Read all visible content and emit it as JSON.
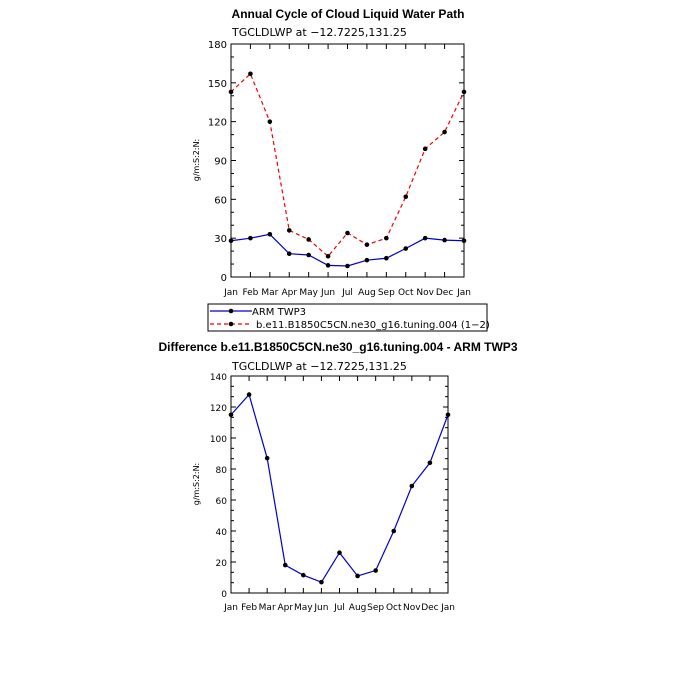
{
  "chart_data": [
    {
      "type": "line",
      "title": "Annual Cycle of Cloud Liquid Water Path",
      "subtitle": "TGCLDLWP  at  −12.7225,131.25",
      "ylabel": "g/m:S:2:N:",
      "xlabel": "",
      "ylim": [
        0,
        180
      ],
      "yticks": [
        "0",
        "30",
        "60",
        "90",
        "120",
        "150",
        "180"
      ],
      "categories": [
        "Jan",
        "Feb",
        "Mar",
        "Apr",
        "May",
        "Jun",
        "Jul",
        "Aug",
        "Sep",
        "Oct",
        "Nov",
        "Dec",
        "Jan"
      ],
      "series": [
        {
          "name": "ARM TWP3",
          "color": "#0000cc",
          "dash": "solid",
          "values": [
            28,
            30,
            33,
            18,
            17,
            9,
            8.5,
            13,
            14.5,
            22,
            30,
            28.5,
            28
          ]
        },
        {
          "name": "b.e11.B1850C5CN.ne30_g16.tuning.004 (1−2)",
          "color": "#ee0000",
          "dash": "dashed",
          "values": [
            143,
            157,
            120,
            36,
            29,
            16,
            34,
            25,
            30,
            62,
            99,
            112,
            143
          ]
        }
      ],
      "legend_position": "bottom-left"
    },
    {
      "type": "line",
      "title": "Difference b.e11.B1850C5CN.ne30_g16.tuning.004 - ARM TWP3",
      "subtitle": "TGCLDLWP  at  −12.7225,131.25",
      "ylabel": "g/m:S:2:N:",
      "xlabel": "",
      "ylim": [
        0,
        140
      ],
      "yticks": [
        "0",
        "20",
        "40",
        "60",
        "80",
        "100",
        "120",
        "140"
      ],
      "categories": [
        "Jan",
        "Feb",
        "Mar",
        "Apr",
        "May",
        "Jun",
        "Jul",
        "Aug",
        "Sep",
        "Oct",
        "Nov",
        "Dec",
        "Jan"
      ],
      "series": [
        {
          "name": "Difference",
          "color": "#0000cc",
          "dash": "solid",
          "values": [
            115,
            128,
            87,
            18,
            11.5,
            7,
            26,
            11,
            14.5,
            40,
            69,
            84,
            115
          ]
        }
      ]
    }
  ]
}
